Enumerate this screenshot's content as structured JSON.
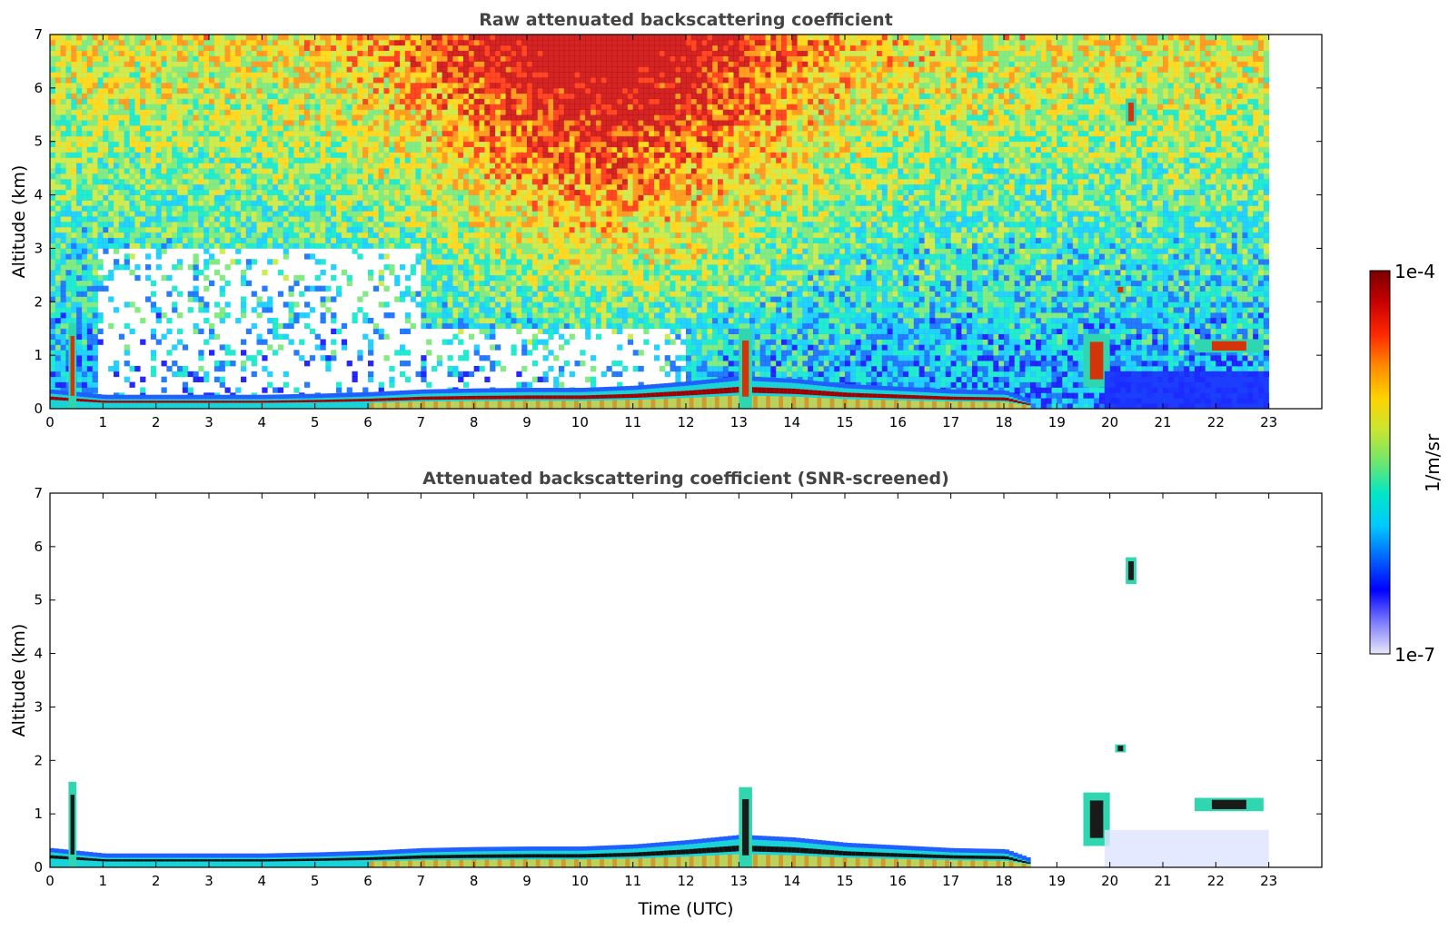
{
  "chart_data": [
    {
      "type": "heatmap",
      "title": "Raw attenuated backscattering coefficient",
      "xlabel": "",
      "ylabel": "Altitude (km)",
      "xlim": [
        0,
        24
      ],
      "ylim": [
        0,
        7
      ],
      "x_ticks": [
        "0",
        "1",
        "2",
        "3",
        "4",
        "5",
        "6",
        "7",
        "8",
        "9",
        "10",
        "11",
        "12",
        "13",
        "14",
        "15",
        "16",
        "17",
        "18",
        "19",
        "20",
        "21",
        "22",
        "23"
      ],
      "y_ticks": [
        "0",
        "1",
        "2",
        "3",
        "4",
        "5",
        "6",
        "7"
      ],
      "data_end_time": 23,
      "features": [
        {
          "name": "boundary layer top",
          "x": [
            0,
            1,
            2,
            3,
            4,
            5,
            6,
            7,
            8,
            9,
            10,
            11,
            12,
            13,
            14,
            15,
            16,
            17,
            18,
            18.5
          ],
          "y": [
            0.3,
            0.2,
            0.2,
            0.2,
            0.2,
            0.22,
            0.25,
            0.3,
            0.32,
            0.33,
            0.33,
            0.37,
            0.45,
            0.55,
            0.5,
            0.4,
            0.35,
            0.3,
            0.28,
            0.1
          ]
        },
        {
          "name": "cloud 0.4h",
          "x": [
            0.35,
            0.5
          ],
          "y": [
            0,
            1.6
          ]
        },
        {
          "name": "cloud 13h",
          "x": [
            13.0,
            13.25
          ],
          "y": [
            0,
            1.5
          ]
        },
        {
          "name": "cloud 19.8h",
          "x": [
            19.5,
            20.0
          ],
          "y": [
            0.4,
            1.4
          ]
        },
        {
          "name": "cloud 20.4h",
          "x": [
            20.3,
            20.5
          ],
          "y": [
            5.3,
            5.8
          ]
        },
        {
          "name": "cloud 20.2h",
          "x": [
            20.1,
            20.3
          ],
          "y": [
            2.15,
            2.3
          ]
        },
        {
          "name": "cloud 22h",
          "x": [
            21.6,
            22.9
          ],
          "y": [
            1.05,
            1.3
          ]
        }
      ]
    },
    {
      "type": "heatmap",
      "title": "Attenuated backscattering coefficient (SNR-screened)",
      "xlabel": "Time (UTC)",
      "ylabel": "Altitude (km)",
      "xlim": [
        0,
        24
      ],
      "ylim": [
        0,
        7
      ],
      "x_ticks": [
        "0",
        "1",
        "2",
        "3",
        "4",
        "5",
        "6",
        "7",
        "8",
        "9",
        "10",
        "11",
        "12",
        "13",
        "14",
        "15",
        "16",
        "17",
        "18",
        "19",
        "20",
        "21",
        "22",
        "23"
      ],
      "y_ticks": [
        "0",
        "1",
        "2",
        "3",
        "4",
        "5",
        "6",
        "7"
      ],
      "data_end_time": 23
    }
  ],
  "colorbar": {
    "max_label": "1e-4",
    "min_label": "1e-7",
    "unit_label": "1/m/sr",
    "colors": [
      "#e8e8f8",
      "#7b7bff",
      "#0000ff",
      "#0064ff",
      "#00c8ff",
      "#00e6c8",
      "#6ee66e",
      "#c8e632",
      "#ffd200",
      "#ff8c00",
      "#ff2800",
      "#c80000",
      "#7a0000"
    ]
  }
}
